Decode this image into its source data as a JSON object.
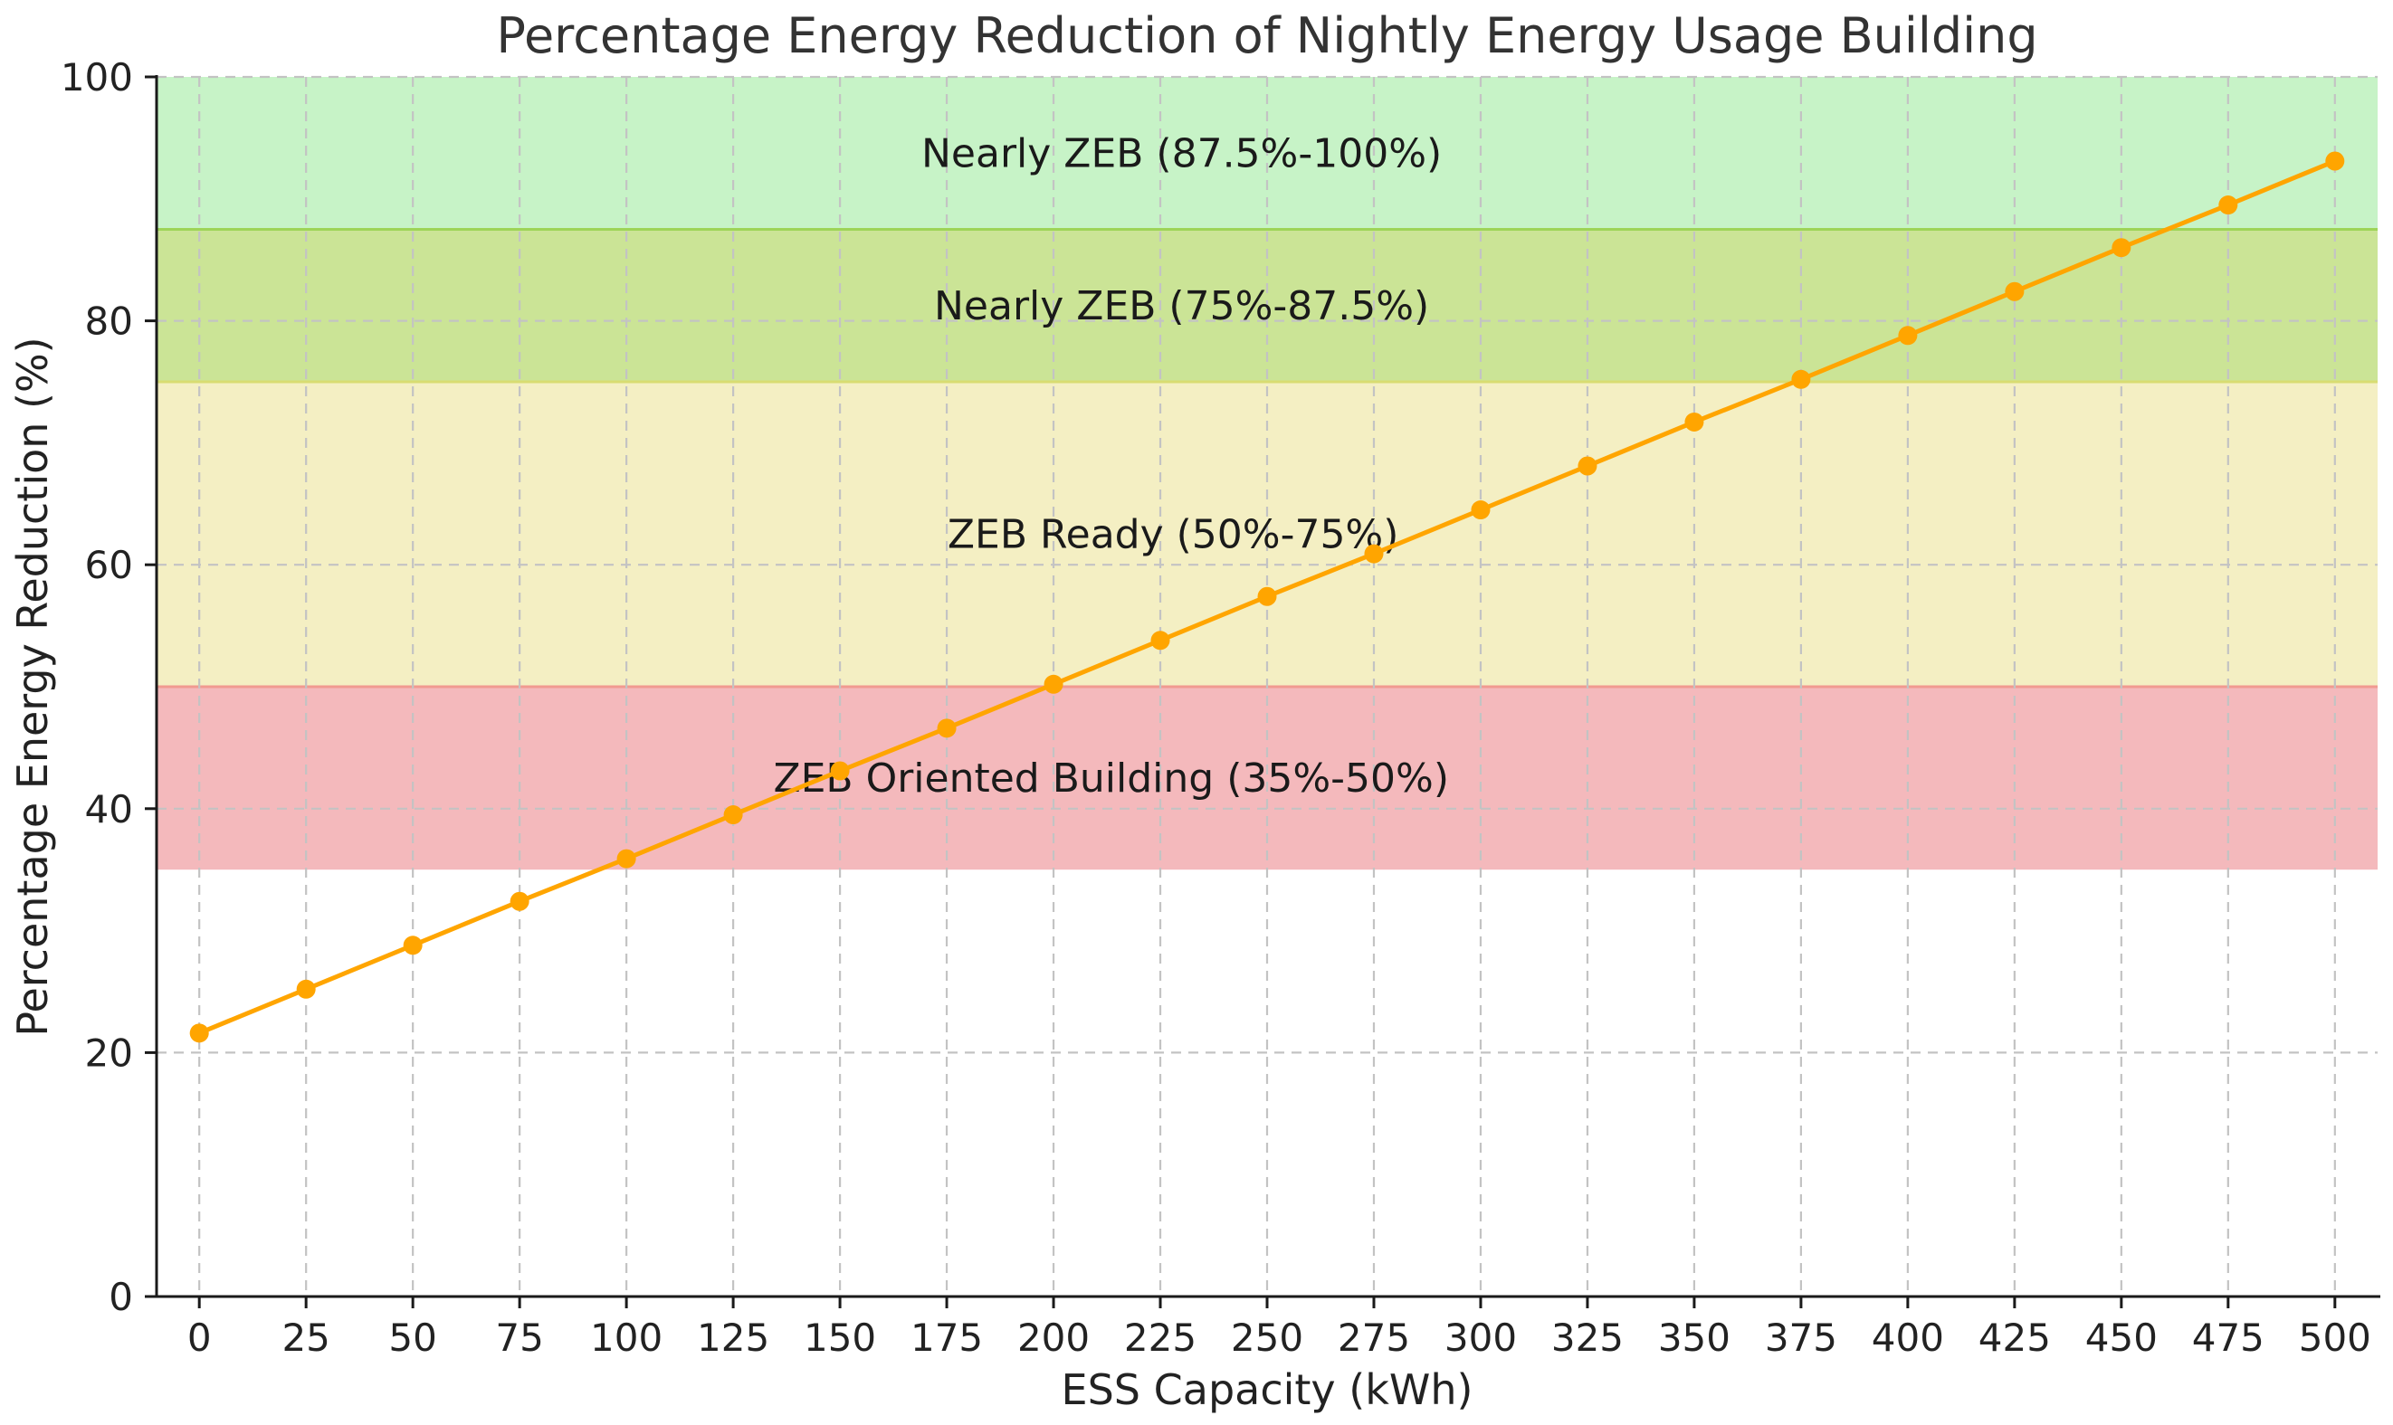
{
  "chart_data": {
    "type": "line",
    "title": "Percentage Energy Reduction of Nightly Energy Usage Building",
    "xlabel": "ESS Capacity (kWh)",
    "ylabel": "Percentage Energy Reduction (%)",
    "x": [
      0,
      25,
      50,
      75,
      100,
      125,
      150,
      175,
      200,
      225,
      250,
      275,
      300,
      325,
      350,
      375,
      400,
      425,
      450,
      475,
      500
    ],
    "y": [
      21.6,
      25.2,
      28.8,
      32.4,
      35.9,
      39.5,
      43.1,
      46.6,
      50.2,
      53.8,
      57.4,
      60.9,
      64.5,
      68.1,
      71.7,
      75.2,
      78.8,
      82.4,
      86.0,
      89.5,
      93.1
    ],
    "xlim": [
      -10,
      510
    ],
    "ylim": [
      0,
      100
    ],
    "xticks": [
      0,
      25,
      50,
      75,
      100,
      125,
      150,
      175,
      200,
      225,
      250,
      275,
      300,
      325,
      350,
      375,
      400,
      425,
      450,
      475,
      500
    ],
    "yticks": [
      0,
      20,
      40,
      60,
      80,
      100
    ],
    "grid": true,
    "line_color": "#FFA500",
    "marker": "circle",
    "marker_color": "#FFA500",
    "grid_color": "#c3c3c3",
    "spine_color": "#1a1a1a",
    "bands": [
      {
        "label": "Nearly ZEB (87.5%-100%)",
        "from": 87.5,
        "to": 100,
        "color": "#C7F3C7",
        "label_x": 230,
        "label_y": 93.75
      },
      {
        "label": "Nearly ZEB (75%-87.5%)",
        "from": 75,
        "to": 87.5,
        "color": "#CBE496",
        "label_x": 230,
        "label_y": 81.25
      },
      {
        "label": "ZEB Ready (50%-75%)",
        "from": 50,
        "to": 75,
        "color": "#F4EFC3",
        "label_x": 228,
        "label_y": 62.5
      },
      {
        "label": "ZEB Oriented Building (35%-50%)",
        "from": 35,
        "to": 50,
        "color": "#F4B9BC",
        "label_x": 213.5,
        "label_y": 42.5
      }
    ],
    "band_edges": [
      {
        "y": 87.5,
        "color": "#9ED457"
      },
      {
        "y": 75,
        "color": "#D8DC72"
      },
      {
        "y": 50,
        "color": "#F19A90"
      }
    ]
  }
}
